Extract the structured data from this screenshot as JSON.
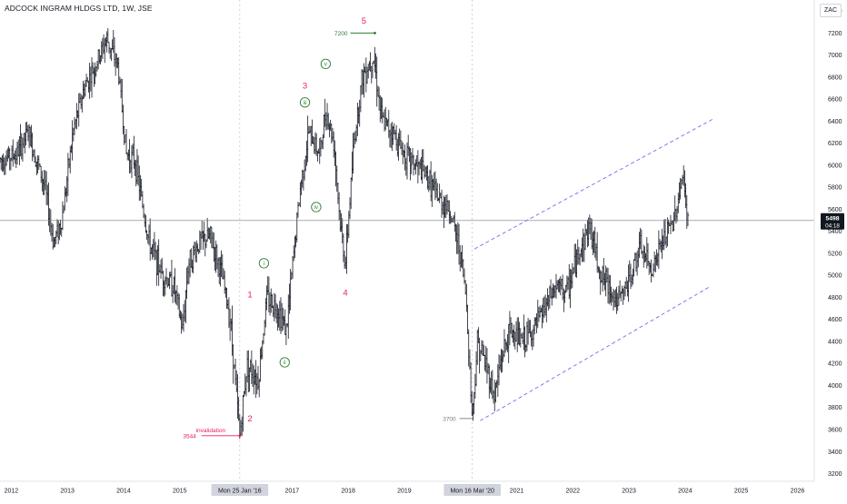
{
  "header": {
    "symbol_title": "ADCOCK INGRAM HLDGS LTD, 1W, JSE",
    "currency": "ZAC"
  },
  "price_badge": {
    "value": "5498",
    "countdown": "04:18"
  },
  "colors": {
    "candle": "#131722",
    "wave_label": "#e91e63",
    "subwave": "#2e7d32",
    "channel": "#7b68ee",
    "price_line": "#787b86",
    "badge_bg": "#131722",
    "axis_text": "#131722"
  },
  "chart_data": {
    "type": "ohlc",
    "interval": "1W",
    "y_axis": {
      "position": "right",
      "range": [
        3130,
        7500
      ],
      "ticks": [
        3200,
        3400,
        3600,
        3800,
        4000,
        4200,
        4400,
        4600,
        4800,
        5000,
        5200,
        5400,
        5600,
        5800,
        6000,
        6200,
        6400,
        6600,
        6800,
        7000,
        7200,
        7400
      ]
    },
    "x_axis": {
      "range": [
        2011.8,
        2026.3
      ],
      "ticks": [
        {
          "label": "2012",
          "x": 2012.0
        },
        {
          "label": "2013",
          "x": 2013.0
        },
        {
          "label": "2014",
          "x": 2014.0
        },
        {
          "label": "2015",
          "x": 2015.0
        },
        {
          "label": "Mon 25 Jan '16",
          "x": 2016.07,
          "highlight": true
        },
        {
          "label": "2017",
          "x": 2017.0
        },
        {
          "label": "2018",
          "x": 2018.0
        },
        {
          "label": "2019",
          "x": 2019.0
        },
        {
          "label": "Mon 16 Mar '20",
          "x": 2020.21,
          "highlight": true
        },
        {
          "label": "2021",
          "x": 2021.0
        },
        {
          "label": "2022",
          "x": 2022.0
        },
        {
          "label": "2023",
          "x": 2023.0
        },
        {
          "label": "2024",
          "x": 2024.0
        },
        {
          "label": "2025",
          "x": 2025.0
        },
        {
          "label": "2026",
          "x": 2026.0
        }
      ]
    },
    "price_path": [
      [
        2011.8,
        6050
      ],
      [
        2012.1,
        6100
      ],
      [
        2012.3,
        6300
      ],
      [
        2012.6,
        5800
      ],
      [
        2012.75,
        5300
      ],
      [
        2012.9,
        5500
      ],
      [
        2013.1,
        6300
      ],
      [
        2013.3,
        6700
      ],
      [
        2013.5,
        6900
      ],
      [
        2013.7,
        7150
      ],
      [
        2013.9,
        6900
      ],
      [
        2014.05,
        6100
      ],
      [
        2014.2,
        6050
      ],
      [
        2014.45,
        5300
      ],
      [
        2014.7,
        5000
      ],
      [
        2014.9,
        4900
      ],
      [
        2015.05,
        4500
      ],
      [
        2015.15,
        5100
      ],
      [
        2015.35,
        5300
      ],
      [
        2015.55,
        5350
      ],
      [
        2015.75,
        5000
      ],
      [
        2015.9,
        4600
      ],
      [
        2016.07,
        3544
      ],
      [
        2016.2,
        4200
      ],
      [
        2016.4,
        4050
      ],
      [
        2016.55,
        4800
      ],
      [
        2016.75,
        4700
      ],
      [
        2016.9,
        4500
      ],
      [
        2017.05,
        5300
      ],
      [
        2017.15,
        5800
      ],
      [
        2017.3,
        6300
      ],
      [
        2017.5,
        6100
      ],
      [
        2017.6,
        6500
      ],
      [
        2017.75,
        6200
      ],
      [
        2017.85,
        5500
      ],
      [
        2017.95,
        5100
      ],
      [
        2018.1,
        6200
      ],
      [
        2018.25,
        6800
      ],
      [
        2018.45,
        7000
      ],
      [
        2018.6,
        6400
      ],
      [
        2018.8,
        6300
      ],
      [
        2019.0,
        6100
      ],
      [
        2019.2,
        6000
      ],
      [
        2019.4,
        5900
      ],
      [
        2019.6,
        5700
      ],
      [
        2019.8,
        5600
      ],
      [
        2020.0,
        5200
      ],
      [
        2020.1,
        4800
      ],
      [
        2020.21,
        3700
      ],
      [
        2020.3,
        4400
      ],
      [
        2020.45,
        4200
      ],
      [
        2020.6,
        3900
      ],
      [
        2020.75,
        4300
      ],
      [
        2020.9,
        4500
      ],
      [
        2021.1,
        4400
      ],
      [
        2021.3,
        4500
      ],
      [
        2021.5,
        4700
      ],
      [
        2021.7,
        4900
      ],
      [
        2021.9,
        4850
      ],
      [
        2022.1,
        5200
      ],
      [
        2022.3,
        5450
      ],
      [
        2022.5,
        5000
      ],
      [
        2022.65,
        4900
      ],
      [
        2022.8,
        4750
      ],
      [
        2023.0,
        4950
      ],
      [
        2023.2,
        5250
      ],
      [
        2023.4,
        5050
      ],
      [
        2023.6,
        5300
      ],
      [
        2023.8,
        5500
      ],
      [
        2023.95,
        5900
      ],
      [
        2024.05,
        5498
      ]
    ],
    "current_price": 5498,
    "wave_labels": [
      {
        "text": "1",
        "x": 2016.25,
        "y": 4825,
        "style": "primary"
      },
      {
        "text": "2",
        "x": 2016.25,
        "y": 3700,
        "style": "primary"
      },
      {
        "text": "3",
        "x": 2017.23,
        "y": 6720,
        "style": "primary"
      },
      {
        "text": "4",
        "x": 2017.95,
        "y": 4840,
        "style": "primary"
      },
      {
        "text": "5",
        "x": 2018.28,
        "y": 7310,
        "style": "primary"
      },
      {
        "text": "i",
        "x": 2016.5,
        "y": 5110,
        "style": "circled"
      },
      {
        "text": "ii",
        "x": 2016.87,
        "y": 4210,
        "style": "circled"
      },
      {
        "text": "iii",
        "x": 2017.23,
        "y": 6570,
        "style": "circled"
      },
      {
        "text": "iv",
        "x": 2017.43,
        "y": 5620,
        "style": "circled"
      },
      {
        "text": "v",
        "x": 2017.6,
        "y": 6920,
        "style": "circled"
      }
    ],
    "annotations": [
      {
        "text": "invalidation",
        "x": 2016.07,
        "y": 3544,
        "marker": "3544"
      },
      {
        "text": "7200",
        "x": 2018.2,
        "y": 7200,
        "marker": "7200"
      },
      {
        "text": "3700",
        "x": 2020.21,
        "y": 3700,
        "marker": "3700"
      }
    ],
    "channel": {
      "upper": [
        [
          2020.25,
          5240
        ],
        [
          2024.5,
          6420
        ]
      ],
      "lower": [
        [
          2020.35,
          3680
        ],
        [
          2024.45,
          4900
        ]
      ]
    }
  }
}
